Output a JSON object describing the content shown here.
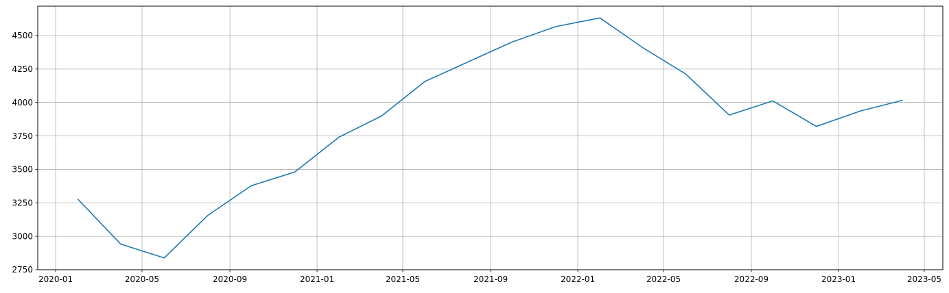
{
  "chart_data": {
    "type": "line",
    "title": "",
    "xlabel": "",
    "ylabel": "",
    "x_scale": "date",
    "xlim": [
      "2019-12-07",
      "2023-05-27"
    ],
    "ylim": [
      2750,
      4720
    ],
    "grid": true,
    "x_ticks": [
      "2020-01-01",
      "2020-05-01",
      "2020-09-01",
      "2021-01-01",
      "2021-05-01",
      "2021-09-01",
      "2022-01-01",
      "2022-05-01",
      "2022-09-01",
      "2023-01-01",
      "2023-05-01"
    ],
    "x_tick_labels": [
      "2020-01",
      "2020-05",
      "2020-09",
      "2021-01",
      "2021-05",
      "2021-09",
      "2022-01",
      "2022-05",
      "2022-09",
      "2023-01",
      "2023-05"
    ],
    "y_ticks": [
      2750,
      3000,
      3250,
      3500,
      3750,
      4000,
      4250,
      4500
    ],
    "y_tick_labels": [
      "2750",
      "3000",
      "3250",
      "3500",
      "3750",
      "4000",
      "4250",
      "4500"
    ],
    "series": [
      {
        "color": "#1f77b4",
        "x": [
          "2020-02-01",
          "2020-04-01",
          "2020-06-01",
          "2020-08-01",
          "2020-10-01",
          "2020-12-01",
          "2021-02-01",
          "2021-04-01",
          "2021-06-01",
          "2021-08-01",
          "2021-10-01",
          "2021-12-01",
          "2022-02-01",
          "2022-04-01",
          "2022-06-01",
          "2022-08-01",
          "2022-10-01",
          "2022-12-01",
          "2023-02-01",
          "2023-04-01"
        ],
        "y": [
          3278,
          2942,
          2838,
          3156,
          3378,
          3481,
          3742,
          3898,
          4157,
          4305,
          4452,
          4567,
          4632,
          4413,
          4213,
          3906,
          4012,
          3821,
          3937,
          4017
        ]
      }
    ]
  }
}
